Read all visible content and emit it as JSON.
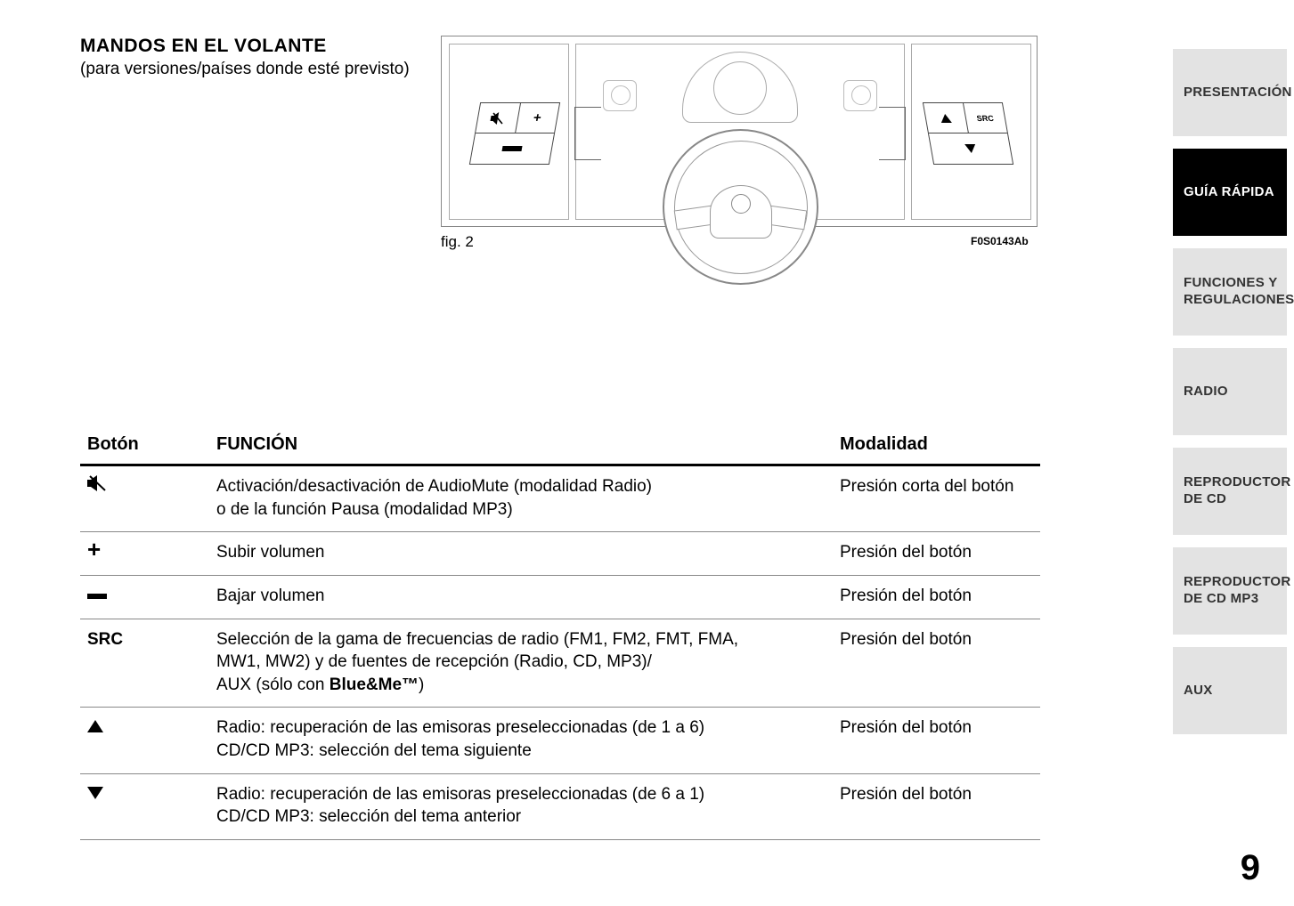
{
  "title": {
    "main": "MANDOS EN EL VOLANTE",
    "sub": "(para versiones/países donde esté previsto)"
  },
  "figure": {
    "caption": "fig. 2",
    "code": "F0S0143Ab",
    "left_pad": {
      "top_left_icon": "mute",
      "top_right": "+",
      "bottom": "−"
    },
    "right_pad": {
      "top_left_icon": "up",
      "top_right": "SRC",
      "bottom_icon": "down"
    }
  },
  "table": {
    "headers": [
      "Botón",
      "FUNCIÓN",
      "Modalidad"
    ],
    "rows": [
      {
        "button_type": "mute-icon",
        "button_text": "",
        "function": "Activación/desactivación de AudioMute (modalidad Radio) o de la función Pausa (modalidad MP3)",
        "mode": "Presión corta del botón"
      },
      {
        "button_type": "plus",
        "button_text": "+",
        "function": "Subir volumen",
        "mode": "Presión del botón"
      },
      {
        "button_type": "minus",
        "button_text": "",
        "function": "Bajar volumen",
        "mode": "Presión del botón"
      },
      {
        "button_type": "text",
        "button_text": "SRC",
        "function_prefix": "Selección de la gama de frecuencias de radio (FM1, FM2, FMT, FMA, MW1, MW2) y de fuentes de recepción (Radio, CD, MP3)/ AUX (sólo con ",
        "function_bold": "Blue&Me™",
        "function_suffix": ")",
        "mode": "Presión del botón"
      },
      {
        "button_type": "tri-up",
        "button_text": "",
        "function": "Radio: recuperación de las emisoras preseleccionadas (de 1 a 6) CD/CD MP3: selección del tema siguiente",
        "mode": "Presión del botón"
      },
      {
        "button_type": "tri-down",
        "button_text": "",
        "function": "Radio: recuperación de las emisoras preseleccionadas (de 6 a 1) CD/CD MP3: selección del tema anterior",
        "mode": "Presión del botón"
      }
    ]
  },
  "tabs": [
    {
      "label": "PRESENTACIÓN",
      "active": false
    },
    {
      "label": "GUÍA RÁPIDA",
      "active": true
    },
    {
      "label": "FUNCIONES Y REGULACIONES",
      "active": false
    },
    {
      "label": "RADIO",
      "active": false
    },
    {
      "label": "REPRODUCTOR DE CD",
      "active": false
    },
    {
      "label": "REPRODUCTOR DE CD MP3",
      "active": false
    },
    {
      "label": "AUX",
      "active": false
    }
  ],
  "page_number": "9",
  "colors": {
    "tab_bg": "#e3e3e3",
    "tab_active_bg": "#000000",
    "tab_active_fg": "#ffffff",
    "text": "#000000",
    "rule": "#888888"
  }
}
